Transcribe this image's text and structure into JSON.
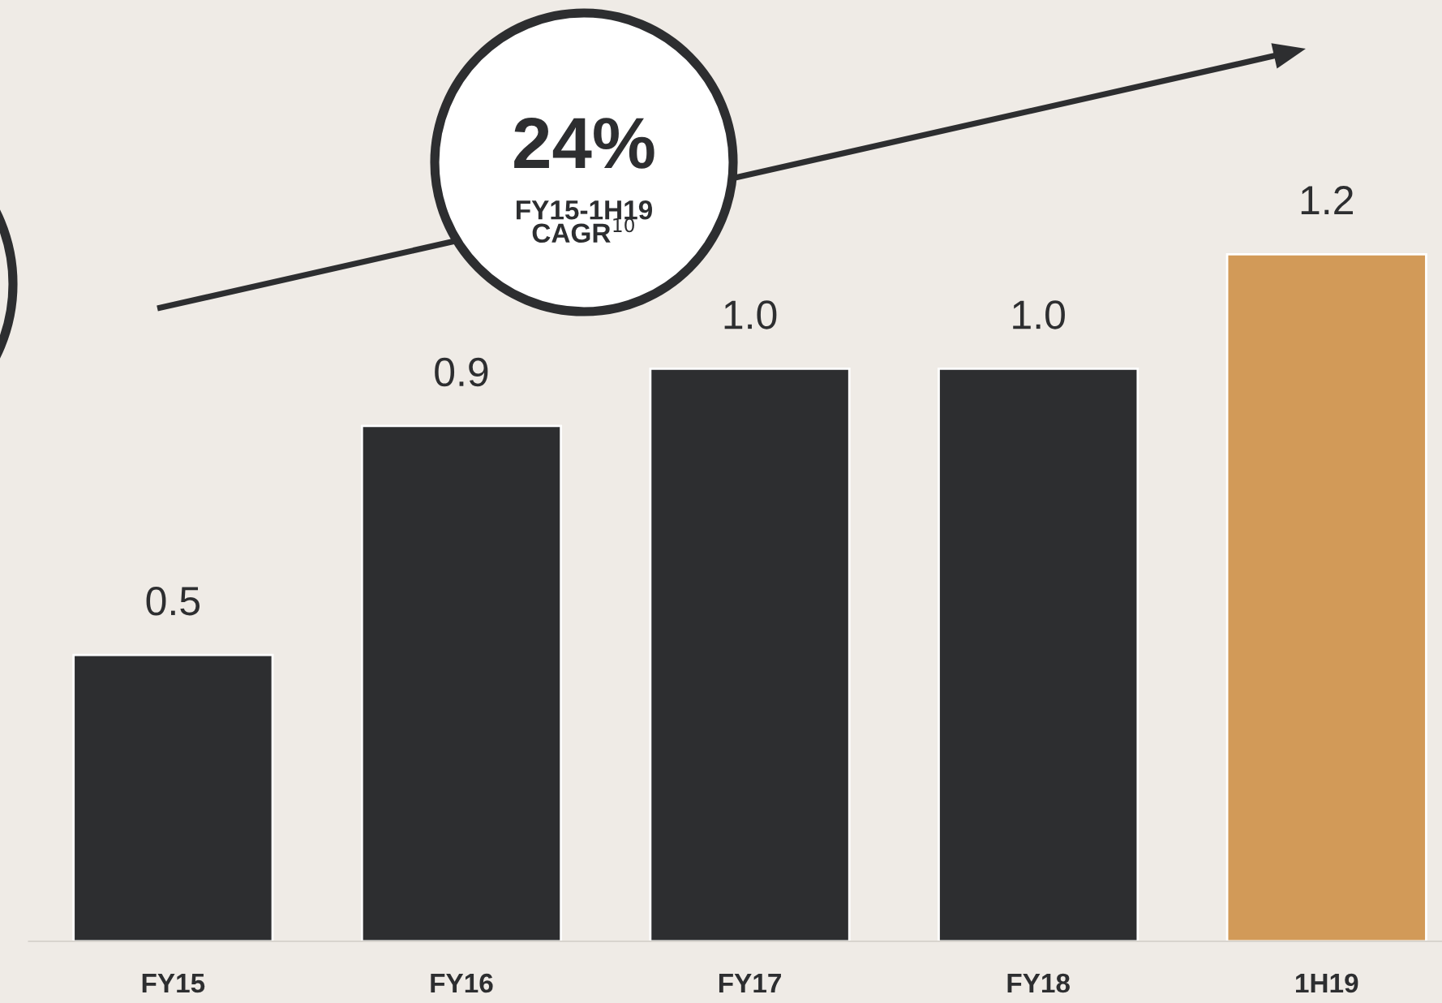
{
  "chart_data": {
    "type": "bar",
    "categories": [
      "FY15",
      "FY16",
      "FY17",
      "FY18",
      "1H19"
    ],
    "values": [
      0.5,
      0.9,
      1.0,
      1.0,
      1.2
    ],
    "colors": [
      "#2d2e30",
      "#2d2e30",
      "#2d2e30",
      "#2d2e30",
      "#d29a58"
    ],
    "value_labels": [
      "0.5",
      "0.9",
      "1.0",
      "1.0",
      "1.2"
    ],
    "annotations": [
      "24%",
      "FY15-1H19\nCAGR$^{10}$"
    ]
  }
}
